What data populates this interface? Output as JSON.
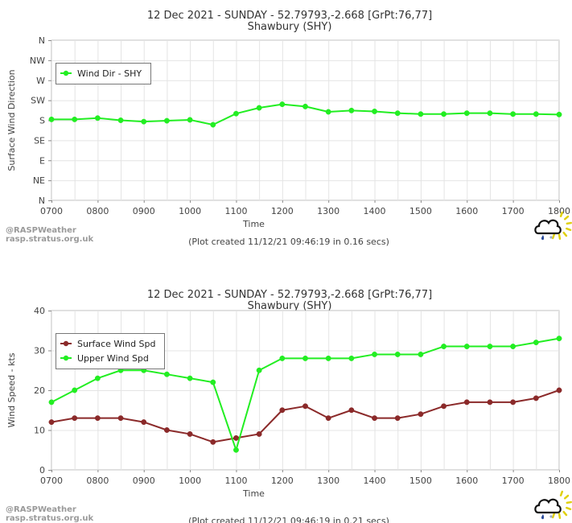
{
  "branding": {
    "line1": "@RASPWeather",
    "line2": "rasp.stratus.org.uk"
  },
  "chart_data": [
    {
      "type": "line",
      "title": "12 Dec 2021 - SUNDAY - 52.79793,-2.668 [GrPt:76,77]",
      "subtitle": "Shawbury (SHY)",
      "xlabel": "Time",
      "ylabel": "Surface Wind Direction",
      "x_ticks": [
        "0700",
        "0800",
        "0900",
        "1000",
        "1100",
        "1200",
        "1300",
        "1400",
        "1500",
        "1600",
        "1700",
        "1800"
      ],
      "y_categories": [
        "N",
        "NE",
        "E",
        "SE",
        "S",
        "SW",
        "W",
        "NW",
        "N"
      ],
      "y_category_degrees": [
        0,
        45,
        90,
        135,
        180,
        225,
        270,
        315,
        360
      ],
      "ylim": [
        0,
        360
      ],
      "grid": true,
      "legend_position": "top-left",
      "footer": "(Plot created 11/12/21 09:46:19 in 0.16 secs)",
      "x": [
        "0700",
        "0730",
        "0800",
        "0830",
        "0900",
        "0930",
        "1000",
        "1030",
        "1100",
        "1130",
        "1200",
        "1230",
        "1300",
        "1330",
        "1400",
        "1430",
        "1500",
        "1530",
        "1600",
        "1630",
        "1700",
        "1730",
        "1800"
      ],
      "series": [
        {
          "name": "Wind Dir - SHY",
          "color": "#22ee22",
          "values": [
            182,
            182,
            185,
            180,
            177,
            179,
            181,
            170,
            195,
            208,
            216,
            211,
            199,
            202,
            200,
            196,
            194,
            194,
            196,
            196,
            194,
            194,
            193
          ]
        }
      ]
    },
    {
      "type": "line",
      "title": "12 Dec 2021 - SUNDAY - 52.79793,-2.668 [GrPt:76,77]",
      "subtitle": "Shawbury (SHY)",
      "xlabel": "Time",
      "ylabel": "Wind Speed - kts",
      "x_ticks": [
        "0700",
        "0800",
        "0900",
        "1000",
        "1100",
        "1200",
        "1300",
        "1400",
        "1500",
        "1600",
        "1700",
        "1800"
      ],
      "y_ticks": [
        "0",
        "10",
        "20",
        "30",
        "40"
      ],
      "ylim": [
        0,
        40
      ],
      "grid": true,
      "legend_position": "top-left",
      "footer": "(Plot created 11/12/21 09:46:19 in 0.21 secs)",
      "x": [
        "0700",
        "0730",
        "0800",
        "0830",
        "0900",
        "0930",
        "1000",
        "1030",
        "1100",
        "1130",
        "1200",
        "1230",
        "1300",
        "1330",
        "1400",
        "1430",
        "1500",
        "1530",
        "1600",
        "1630",
        "1700",
        "1730",
        "1800"
      ],
      "series": [
        {
          "name": "Surface Wind Spd",
          "color": "#8b2a2a",
          "values": [
            12,
            13,
            13,
            13,
            12,
            10,
            9,
            7,
            8,
            9,
            15,
            16,
            13,
            15,
            13,
            13,
            14,
            16,
            17,
            17,
            17,
            18,
            20
          ]
        },
        {
          "name": "Upper Wind Spd",
          "color": "#22ee22",
          "values": [
            17,
            20,
            23,
            25,
            25,
            24,
            23,
            22,
            5,
            25,
            28,
            28,
            28,
            28,
            29,
            29,
            29,
            31,
            31,
            31,
            31,
            32,
            33
          ]
        }
      ]
    }
  ]
}
